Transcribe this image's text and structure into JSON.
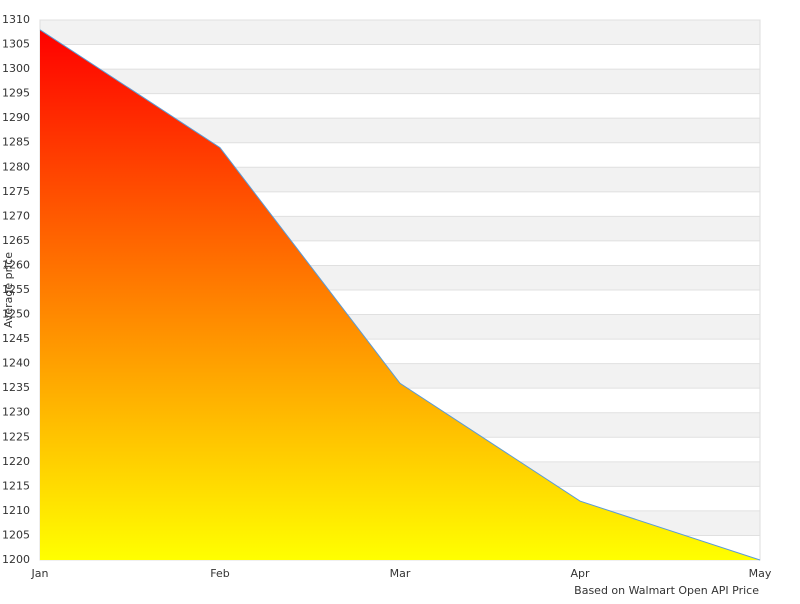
{
  "chart_data": {
    "type": "area",
    "categories": [
      "Jan",
      "Feb",
      "Mar",
      "Apr",
      "May"
    ],
    "values": [
      1308,
      1284,
      1236,
      1212,
      1200
    ],
    "ylabel": "Average price",
    "footnote": "Based on Walmart Open API Price",
    "ylim": [
      1200,
      1310
    ],
    "yticks": [
      1200,
      1205,
      1210,
      1215,
      1220,
      1225,
      1230,
      1235,
      1240,
      1245,
      1250,
      1255,
      1260,
      1265,
      1270,
      1275,
      1280,
      1285,
      1290,
      1295,
      1300,
      1305,
      1310
    ],
    "grid": true,
    "line_color": "#5b9bd5",
    "gradient": [
      "#ff0000",
      "#ffff00"
    ]
  }
}
